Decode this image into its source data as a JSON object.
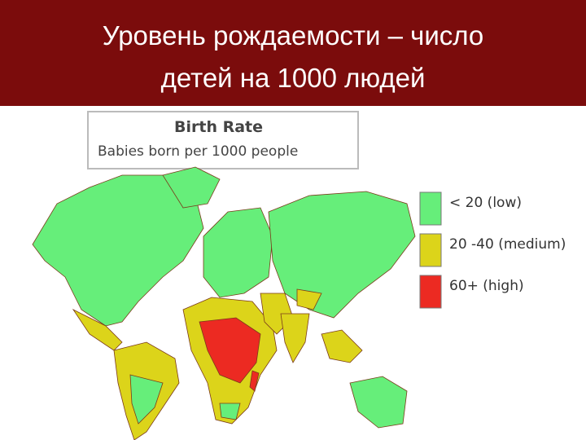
{
  "header": {
    "title_lines": [
      "Уровень рождаемости – число",
      "детей на 1000 людей"
    ]
  },
  "map": {
    "title": "Birth Rate",
    "subtitle": "Babies born per 1000 people",
    "legend": [
      {
        "label": "< 20 (low)",
        "color": "#66ee7a"
      },
      {
        "label": "20 -40 (medium)",
        "color": "#dcd41a"
      },
      {
        "label": "60+ (high)",
        "color": "#ec2a22"
      }
    ]
  }
}
